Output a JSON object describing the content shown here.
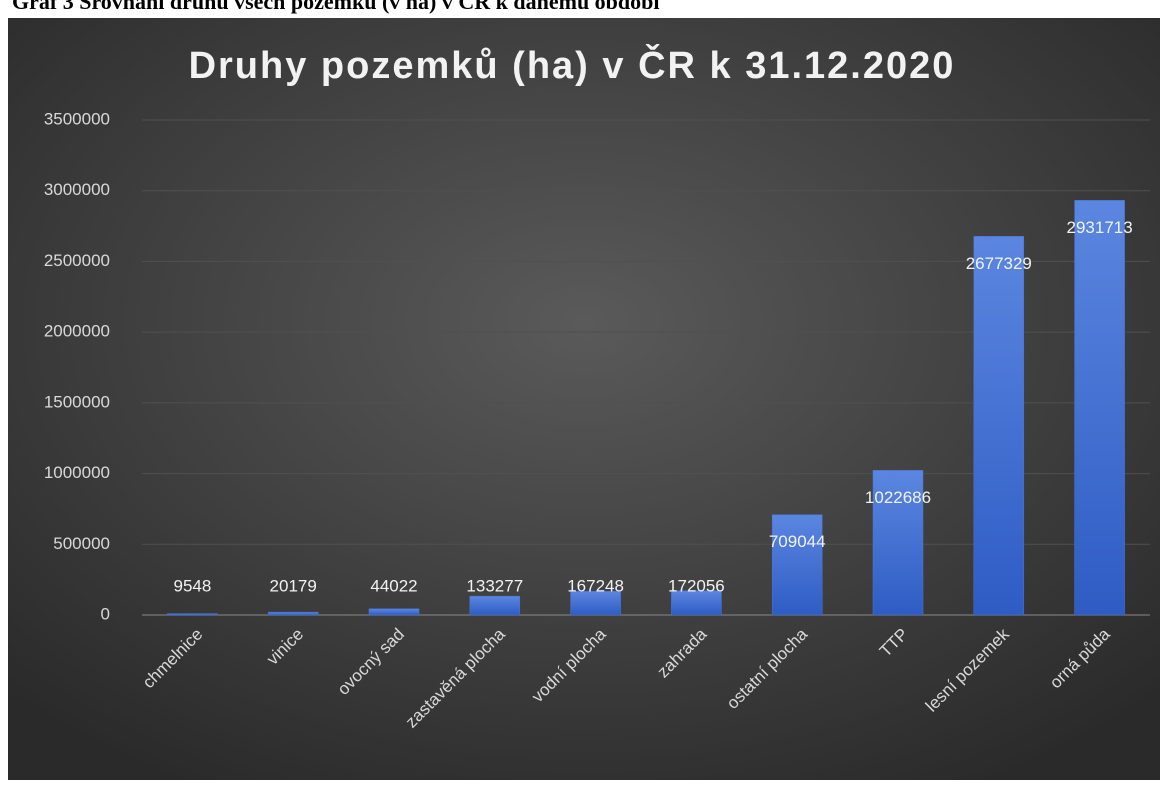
{
  "caption": "Graf 3 Srovnání druhů všech pozemků (v ha) v ČR k danému období",
  "chart_data": {
    "type": "bar",
    "title": "Druhy pozemků (ha) v ČR k 31.12.2020",
    "categories": [
      "chmelnice",
      "vinice",
      "ovocný sad",
      "zastavěná plocha",
      "vodní plocha",
      "zahrada",
      "ostatní plocha",
      "TTP",
      "lesní pozemek",
      "orná půda"
    ],
    "values": [
      9548,
      20179,
      44022,
      133277,
      167248,
      172056,
      709044,
      1022686,
      2677329,
      2931713
    ],
    "color": "#4a76d8",
    "ylim": [
      0,
      3500000
    ],
    "yticks": [
      0,
      500000,
      1000000,
      1500000,
      2000000,
      2500000,
      3000000,
      3500000
    ],
    "grid": true
  }
}
